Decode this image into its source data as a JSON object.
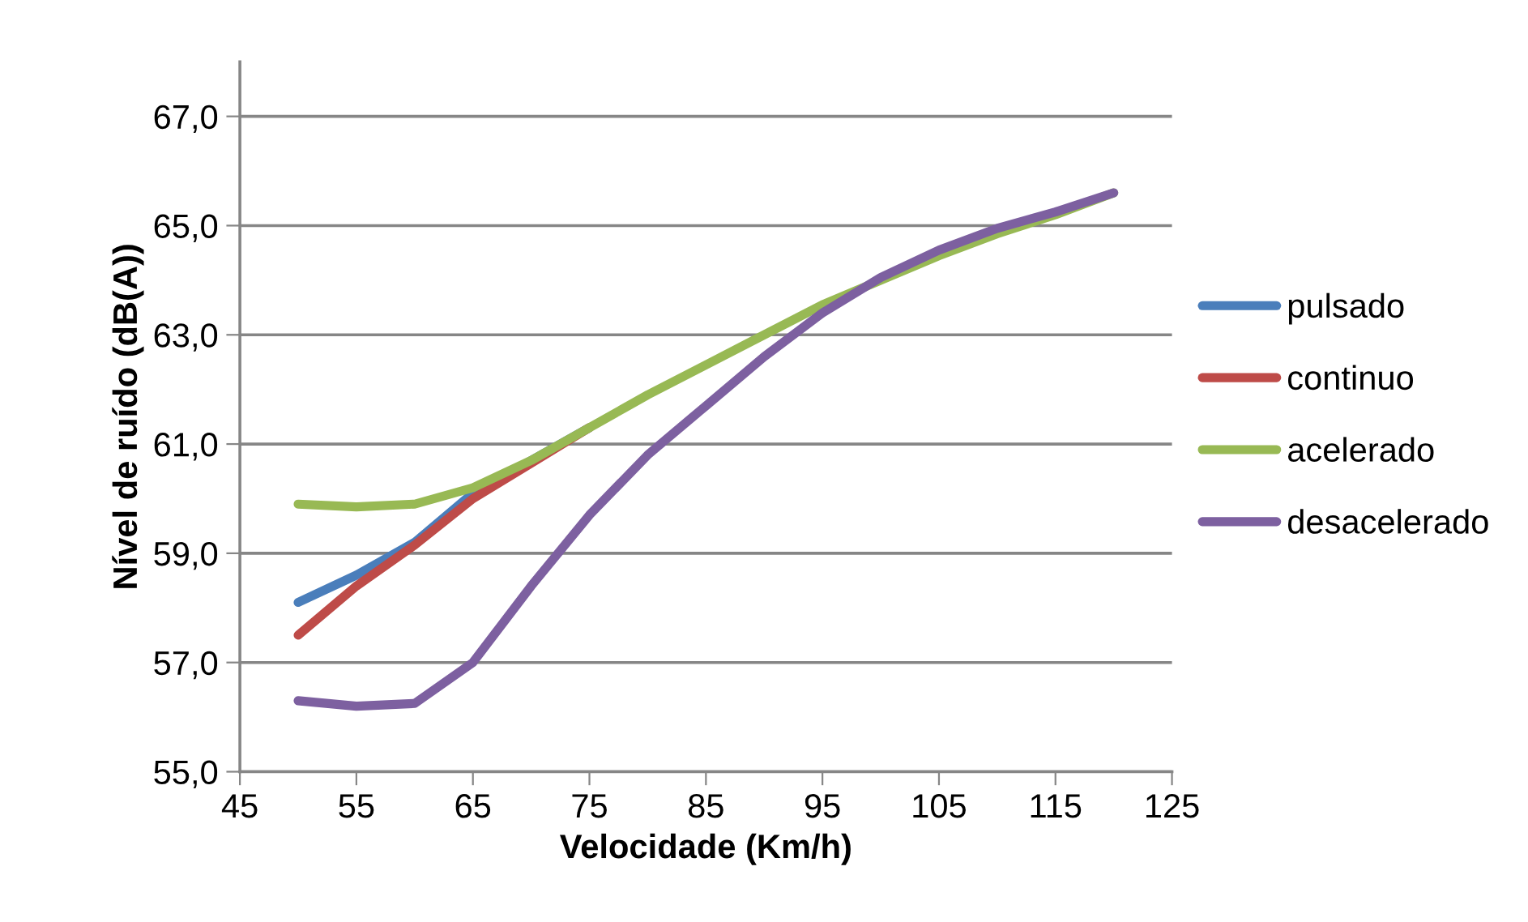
{
  "chart_data": {
    "type": "line",
    "xlabel": "Velocidade (Km/h)",
    "ylabel": "Nível de ruído (dB(A))",
    "x": [
      50,
      55,
      60,
      65,
      70,
      75,
      80,
      85,
      90,
      95,
      100,
      105,
      110,
      115,
      120
    ],
    "series": [
      {
        "name": "pulsado",
        "color": "#4a7ebb",
        "values": [
          58.1,
          58.6,
          59.2,
          60.1,
          60.7,
          61.3,
          null,
          null,
          null,
          null,
          null,
          null,
          null,
          null,
          null
        ]
      },
      {
        "name": "continuo",
        "color": "#be4b48",
        "values": [
          57.5,
          58.4,
          59.15,
          60.0,
          60.65,
          61.3,
          null,
          null,
          null,
          null,
          null,
          null,
          null,
          null,
          null
        ]
      },
      {
        "name": "acelerado",
        "color": "#98b954",
        "values": [
          59.9,
          59.85,
          59.9,
          60.2,
          60.7,
          61.3,
          61.9,
          62.45,
          63.0,
          63.55,
          64.0,
          64.45,
          64.85,
          65.2,
          65.6
        ]
      },
      {
        "name": "desacelerado",
        "color": "#7d60a0",
        "values": [
          56.3,
          56.2,
          56.25,
          57.0,
          58.4,
          59.7,
          60.8,
          61.7,
          62.6,
          63.4,
          64.05,
          64.55,
          64.95,
          65.25,
          65.6
        ]
      }
    ],
    "xlim": [
      45,
      125
    ],
    "xticks": [
      45,
      55,
      65,
      75,
      85,
      95,
      105,
      115,
      125
    ],
    "ylim": [
      55,
      68
    ],
    "yticks": [
      {
        "value": 55,
        "label": "55,0"
      },
      {
        "value": 57,
        "label": "57,0"
      },
      {
        "value": 59,
        "label": "59,0"
      },
      {
        "value": 61,
        "label": "61,0"
      },
      {
        "value": 63,
        "label": "63,0"
      },
      {
        "value": 65,
        "label": "65,0"
      },
      {
        "value": 67,
        "label": "67,0"
      }
    ],
    "grid": "y",
    "legend": "right",
    "marker": "none",
    "line_style": "solid"
  }
}
